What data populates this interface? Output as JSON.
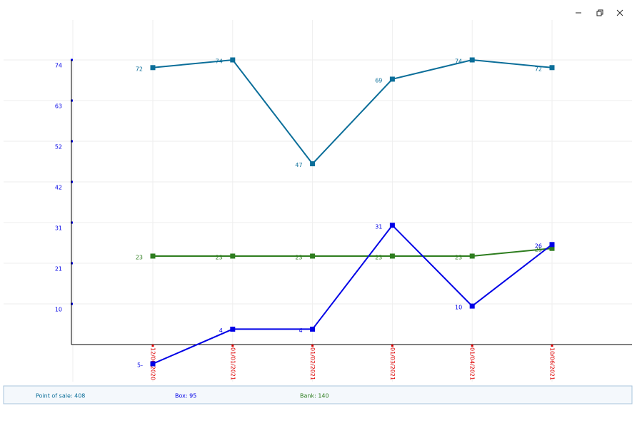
{
  "chart_data": {
    "type": "line",
    "categories": [
      "12/06/2020",
      "01/01/2021",
      "01/02/2021",
      "01/03/2021",
      "01/04/2021",
      "10/06/2021"
    ],
    "series": [
      {
        "color": "#0b6e99",
        "values": [
          72,
          74,
          47,
          69,
          74,
          72
        ]
      },
      {
        "color": "#2e7d1f",
        "values": [
          23,
          23,
          23,
          23,
          23,
          25
        ]
      },
      {
        "color": "#0000e6",
        "values": [
          -5,
          4,
          4,
          31,
          10,
          26
        ],
        "value_labels": [
          "5-",
          "4",
          "4",
          "31",
          "10",
          "26"
        ]
      }
    ],
    "ylim": [
      0,
      74
    ],
    "yticks": [
      {
        "value": 10.57,
        "label": "10"
      },
      {
        "value": 21.14,
        "label": "21"
      },
      {
        "value": 31.71,
        "label": "31"
      },
      {
        "value": 42.29,
        "label": "42"
      },
      {
        "value": 52.86,
        "label": "52"
      },
      {
        "value": 63.43,
        "label": "63"
      },
      {
        "value": 74,
        "label": "74"
      }
    ],
    "grid": true
  },
  "status_bar": {
    "items": [
      {
        "text": "Point of sale: 408",
        "color": "#0b6e99"
      },
      {
        "text": "Box: 95",
        "color": "#0000e6"
      },
      {
        "text": "Bank: 140",
        "color": "#2e7d1f"
      }
    ]
  }
}
